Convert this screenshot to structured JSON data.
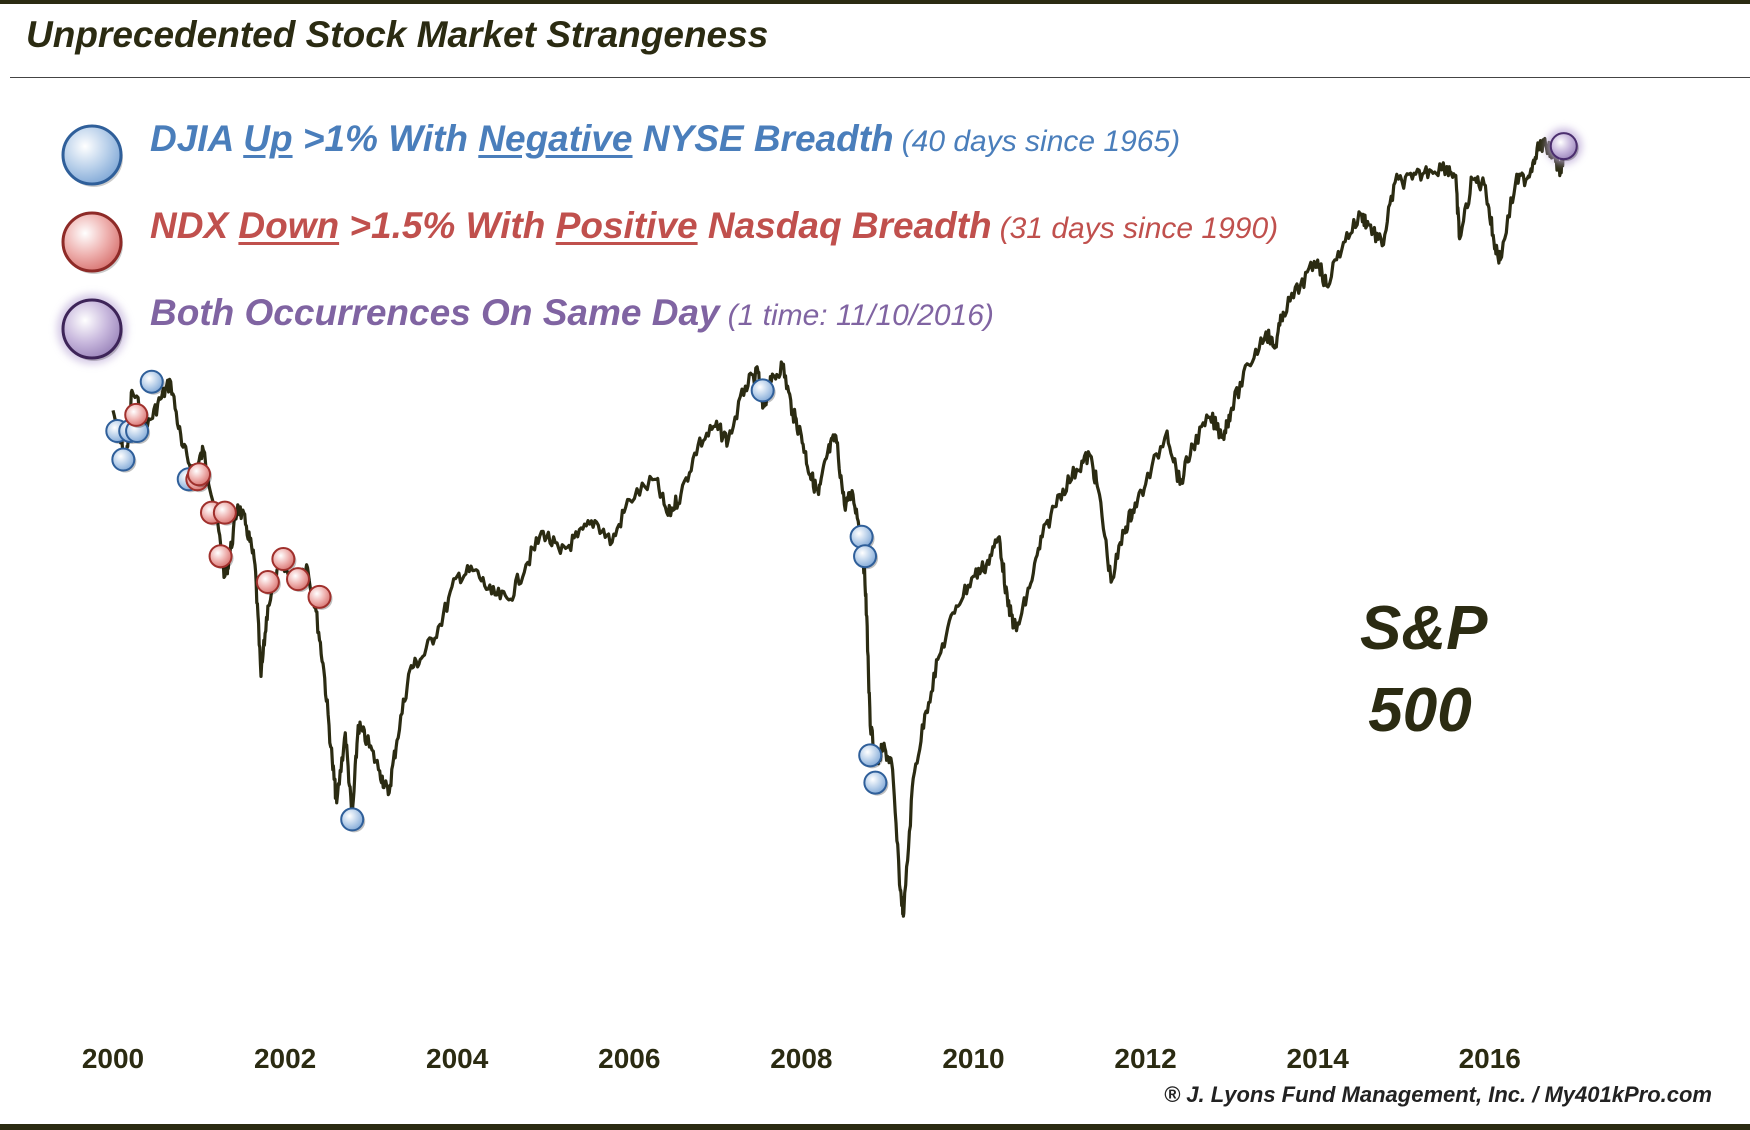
{
  "header": {
    "title": "Unprecedented Stock Market Strangeness"
  },
  "legend": [
    {
      "color": "#4a7ebb",
      "text_parts": [
        "DJIA ",
        "Up",
        " >1% With ",
        "Negative",
        " NYSE Breadth"
      ],
      "note": "(40 days since 1965)"
    },
    {
      "color": "#c0504d",
      "text_parts": [
        "NDX ",
        "Down",
        " >1.5% With ",
        "Positive",
        " Nasdaq Breadth"
      ],
      "note": "(31 days since 1990)"
    },
    {
      "color": "#8064a2",
      "text_parts": [
        "Both Occurrences On Same Day"
      ],
      "note": "(1 time: 11/10/2016)"
    }
  ],
  "series_label": {
    "line1": "S&P",
    "line2": "500"
  },
  "footer": {
    "credit": "® J. Lyons Fund Management, Inc. / My401kPro.com"
  },
  "colors": {
    "line": "#2b2b12",
    "blue": "#4a7ebb",
    "red": "#c0504d",
    "purple": "#8064a2"
  },
  "chart_data": {
    "type": "line",
    "title": "Unprecedented Stock Market Strangeness",
    "xlabel": "",
    "ylabel": "",
    "xlim": [
      2000,
      2017.2
    ],
    "ylim": [
      620,
      2300
    ],
    "yscale": "log",
    "x_ticks": [
      "2000",
      "2002",
      "2004",
      "2006",
      "2008",
      "2010",
      "2012",
      "2014",
      "2016"
    ],
    "grid": false,
    "legend_position": "top-left",
    "series": [
      {
        "name": "S&P 500",
        "points": [
          [
            2000.0,
            1455
          ],
          [
            2000.15,
            1340
          ],
          [
            2000.22,
            1500
          ],
          [
            2000.4,
            1420
          ],
          [
            2000.55,
            1480
          ],
          [
            2000.67,
            1520
          ],
          [
            2000.8,
            1380
          ],
          [
            2000.95,
            1320
          ],
          [
            2001.05,
            1370
          ],
          [
            2001.2,
            1240
          ],
          [
            2001.3,
            1130
          ],
          [
            2001.35,
            1160
          ],
          [
            2001.45,
            1260
          ],
          [
            2001.55,
            1220
          ],
          [
            2001.65,
            1150
          ],
          [
            2001.72,
            970
          ],
          [
            2001.8,
            1080
          ],
          [
            2001.95,
            1150
          ],
          [
            2002.1,
            1120
          ],
          [
            2002.25,
            1150
          ],
          [
            2002.35,
            1080
          ],
          [
            2002.45,
            980
          ],
          [
            2002.55,
            850
          ],
          [
            2002.6,
            800
          ],
          [
            2002.7,
            890
          ],
          [
            2002.78,
            780
          ],
          [
            2002.85,
            900
          ],
          [
            2002.95,
            880
          ],
          [
            2003.1,
            840
          ],
          [
            2003.2,
            810
          ],
          [
            2003.3,
            880
          ],
          [
            2003.45,
            980
          ],
          [
            2003.6,
            1000
          ],
          [
            2003.8,
            1050
          ],
          [
            2004.0,
            1130
          ],
          [
            2004.2,
            1140
          ],
          [
            2004.4,
            1100
          ],
          [
            2004.6,
            1090
          ],
          [
            2004.8,
            1150
          ],
          [
            2005.0,
            1210
          ],
          [
            2005.2,
            1170
          ],
          [
            2005.4,
            1200
          ],
          [
            2005.6,
            1230
          ],
          [
            2005.8,
            1190
          ],
          [
            2006.0,
            1270
          ],
          [
            2006.3,
            1310
          ],
          [
            2006.45,
            1240
          ],
          [
            2006.6,
            1280
          ],
          [
            2006.8,
            1380
          ],
          [
            2007.0,
            1420
          ],
          [
            2007.15,
            1390
          ],
          [
            2007.35,
            1510
          ],
          [
            2007.5,
            1540
          ],
          [
            2007.55,
            1460
          ],
          [
            2007.65,
            1520
          ],
          [
            2007.78,
            1560
          ],
          [
            2007.9,
            1450
          ],
          [
            2008.0,
            1400
          ],
          [
            2008.1,
            1320
          ],
          [
            2008.2,
            1280
          ],
          [
            2008.3,
            1360
          ],
          [
            2008.4,
            1400
          ],
          [
            2008.5,
            1260
          ],
          [
            2008.6,
            1280
          ],
          [
            2008.7,
            1200
          ],
          [
            2008.75,
            1100
          ],
          [
            2008.8,
            900
          ],
          [
            2008.88,
            850
          ],
          [
            2008.95,
            870
          ],
          [
            2009.05,
            850
          ],
          [
            2009.15,
            700
          ],
          [
            2009.19,
            676
          ],
          [
            2009.3,
            830
          ],
          [
            2009.45,
            920
          ],
          [
            2009.6,
            1000
          ],
          [
            2009.8,
            1080
          ],
          [
            2010.0,
            1130
          ],
          [
            2010.15,
            1150
          ],
          [
            2010.3,
            1200
          ],
          [
            2010.4,
            1080
          ],
          [
            2010.5,
            1040
          ],
          [
            2010.65,
            1110
          ],
          [
            2010.8,
            1200
          ],
          [
            2011.0,
            1280
          ],
          [
            2011.2,
            1330
          ],
          [
            2011.35,
            1360
          ],
          [
            2011.45,
            1290
          ],
          [
            2011.6,
            1120
          ],
          [
            2011.75,
            1210
          ],
          [
            2011.85,
            1250
          ],
          [
            2012.0,
            1300
          ],
          [
            2012.25,
            1410
          ],
          [
            2012.4,
            1300
          ],
          [
            2012.55,
            1380
          ],
          [
            2012.75,
            1440
          ],
          [
            2012.9,
            1400
          ],
          [
            2013.0,
            1460
          ],
          [
            2013.2,
            1560
          ],
          [
            2013.4,
            1640
          ],
          [
            2013.5,
            1600
          ],
          [
            2013.6,
            1690
          ],
          [
            2013.8,
            1760
          ],
          [
            2014.0,
            1830
          ],
          [
            2014.1,
            1760
          ],
          [
            2014.3,
            1880
          ],
          [
            2014.5,
            1960
          ],
          [
            2014.6,
            1930
          ],
          [
            2014.75,
            1870
          ],
          [
            2014.9,
            2060
          ],
          [
            2015.1,
            2070
          ],
          [
            2015.3,
            2100
          ],
          [
            2015.5,
            2110
          ],
          [
            2015.6,
            2080
          ],
          [
            2015.65,
            1890
          ],
          [
            2015.8,
            2070
          ],
          [
            2015.95,
            2050
          ],
          [
            2016.05,
            1880
          ],
          [
            2016.12,
            1830
          ],
          [
            2016.3,
            2060
          ],
          [
            2016.45,
            2080
          ],
          [
            2016.55,
            2170
          ],
          [
            2016.65,
            2180
          ],
          [
            2016.75,
            2140
          ],
          [
            2016.83,
            2090
          ],
          [
            2016.86,
            2170
          ]
        ]
      }
    ],
    "markers": {
      "djia_up_negative_breadth": [
        [
          2000.05,
          1410
        ],
        [
          2000.12,
          1350
        ],
        [
          2000.2,
          1410
        ],
        [
          2000.28,
          1410
        ],
        [
          2000.45,
          1520
        ],
        [
          2000.88,
          1310
        ],
        [
          2002.78,
          780
        ],
        [
          2007.55,
          1500
        ],
        [
          2008.7,
          1200
        ],
        [
          2008.74,
          1165
        ],
        [
          2008.8,
          860
        ],
        [
          2008.86,
          825
        ]
      ],
      "ndx_down_positive_breadth": [
        [
          2000.27,
          1445
        ],
        [
          2000.98,
          1310
        ],
        [
          2001.0,
          1320
        ],
        [
          2001.15,
          1245
        ],
        [
          2001.3,
          1245
        ],
        [
          2001.25,
          1165
        ],
        [
          2001.8,
          1120
        ],
        [
          2001.98,
          1160
        ],
        [
          2002.15,
          1125
        ],
        [
          2002.4,
          1095
        ]
      ],
      "both_same_day": [
        [
          2016.86,
          2170
        ]
      ]
    }
  }
}
